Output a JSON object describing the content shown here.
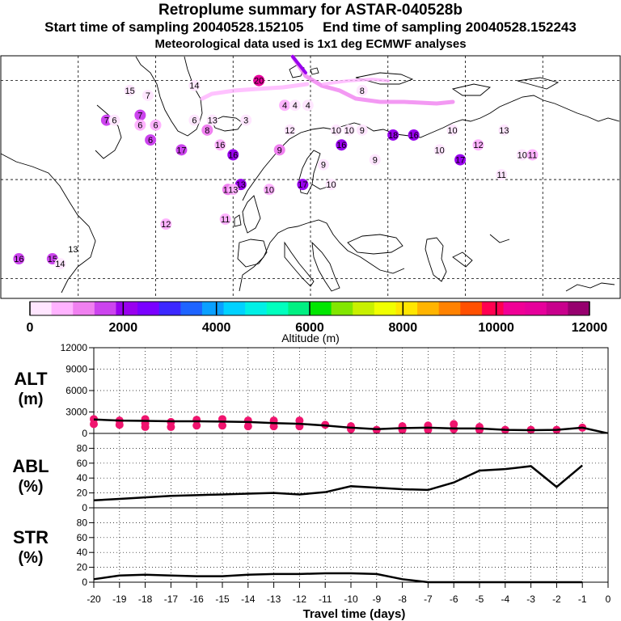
{
  "header": {
    "title": "Retroplume summary for ASTAR-040528b",
    "start_label": "Start time of sampling 20040528.152105",
    "end_label": "End time of sampling 20040528.152243",
    "met_label": "Meteorological data used is 1x1 deg ECMWF analyses"
  },
  "colorbar": {
    "title": "Altitude (m)",
    "tick_labels": [
      "0",
      "2000",
      "4000",
      "6000",
      "8000",
      "10000",
      "12000"
    ],
    "colors": [
      "#ffe6ff",
      "#ffb3ff",
      "#f080f0",
      "#cc44ee",
      "#9900ee",
      "#7a00ff",
      "#3c28ff",
      "#1e64ff",
      "#0aa0ff",
      "#00d2ff",
      "#00f0e6",
      "#00ffbe",
      "#00f082",
      "#00e600",
      "#82e600",
      "#c8f000",
      "#f0ff00",
      "#ffe600",
      "#ffb400",
      "#ff8200",
      "#ff5000",
      "#ff0050",
      "#f00096",
      "#e6009b",
      "#c8008c",
      "#96006e"
    ]
  },
  "map": {
    "labels": [
      {
        "t": "15",
        "lon": -40,
        "lat": 78,
        "c": "#ffe6ff"
      },
      {
        "t": "7",
        "lon": -33,
        "lat": 77,
        "c": "#ffe6ff"
      },
      {
        "t": "14",
        "lon": -15,
        "lat": 79,
        "c": "#ffe6ff"
      },
      {
        "t": "20",
        "lon": 10,
        "lat": 80,
        "c": "#e6009b"
      },
      {
        "t": "8",
        "lon": 50,
        "lat": 78,
        "c": "#ffe6ff"
      },
      {
        "t": "7",
        "lon": -36,
        "lat": 73,
        "c": "#cc44ee"
      },
      {
        "t": "6",
        "lon": -36,
        "lat": 71,
        "c": "#ffb3ff"
      },
      {
        "t": "6",
        "lon": -30,
        "lat": 71,
        "c": "#ffb3ff"
      },
      {
        "t": "6",
        "lon": -32,
        "lat": 68,
        "c": "#cc44ee"
      },
      {
        "t": "7",
        "lon": -49,
        "lat": 72,
        "c": "#cc44ee"
      },
      {
        "t": "6",
        "lon": -46,
        "lat": 72,
        "c": "#ffe6ff"
      },
      {
        "t": "6",
        "lon": -15,
        "lat": 72,
        "c": "#ffe6ff"
      },
      {
        "t": "8",
        "lon": -10,
        "lat": 70,
        "c": "#f080f0"
      },
      {
        "t": "16",
        "lon": -5,
        "lat": 67,
        "c": "#ffb3ff"
      },
      {
        "t": "17",
        "lon": -20,
        "lat": 66,
        "c": "#cc44ee"
      },
      {
        "t": "16",
        "lon": 0,
        "lat": 65,
        "c": "#9900ee"
      },
      {
        "t": "9",
        "lon": 18,
        "lat": 66,
        "c": "#f080f0"
      },
      {
        "t": "13",
        "lon": -8,
        "lat": 72,
        "c": "#ffe6ff"
      },
      {
        "t": "3",
        "lon": 5,
        "lat": 72,
        "c": "#ffe6ff"
      },
      {
        "t": "4",
        "lon": 20,
        "lat": 75,
        "c": "#ffb3ff"
      },
      {
        "t": "4",
        "lon": 24,
        "lat": 75,
        "c": "#ffe6ff"
      },
      {
        "t": "4",
        "lon": 29,
        "lat": 75,
        "c": "#ffe6ff"
      },
      {
        "t": "12",
        "lon": 22,
        "lat": 70,
        "c": "#ffe6ff"
      },
      {
        "t": "10",
        "lon": 40,
        "lat": 70,
        "c": "#ffe6ff"
      },
      {
        "t": "10",
        "lon": 45,
        "lat": 70,
        "c": "#ffe6ff"
      },
      {
        "t": "9",
        "lon": 50,
        "lat": 70,
        "c": "#ffe6ff"
      },
      {
        "t": "16",
        "lon": 42,
        "lat": 67,
        "c": "#9900ee"
      },
      {
        "t": "16",
        "lon": 70,
        "lat": 69,
        "c": "#9900ee"
      },
      {
        "t": "18",
        "lon": 62,
        "lat": 69,
        "c": "#9900ee"
      },
      {
        "t": "10",
        "lon": 85,
        "lat": 70,
        "c": "#ffe6ff"
      },
      {
        "t": "13",
        "lon": 105,
        "lat": 70,
        "c": "#ffe6ff"
      },
      {
        "t": "10",
        "lon": 80,
        "lat": 66,
        "c": "#ffe6ff"
      },
      {
        "t": "12",
        "lon": 95,
        "lat": 67,
        "c": "#ffb3ff"
      },
      {
        "t": "17",
        "lon": 88,
        "lat": 64,
        "c": "#9900ee"
      },
      {
        "t": "10",
        "lon": 112,
        "lat": 65,
        "c": "#ffe6ff"
      },
      {
        "t": "11",
        "lon": 116,
        "lat": 65,
        "c": "#ffb3ff"
      },
      {
        "t": "9",
        "lon": 55,
        "lat": 64,
        "c": "#ffe6ff"
      },
      {
        "t": "9",
        "lon": 35,
        "lat": 63,
        "c": "#ffe6ff"
      },
      {
        "t": "11",
        "lon": 104,
        "lat": 61,
        "c": "#ffe6ff"
      },
      {
        "t": "10",
        "lon": 38,
        "lat": 59,
        "c": "#ffe6ff"
      },
      {
        "t": "17",
        "lon": 27,
        "lat": 59,
        "c": "#9900ee"
      },
      {
        "t": "10",
        "lon": 14,
        "lat": 58,
        "c": "#ffb3ff"
      },
      {
        "t": "13",
        "lon": 3,
        "lat": 59,
        "c": "#9900ee"
      },
      {
        "t": "14",
        "lon": -2,
        "lat": 58,
        "c": "#f080f0"
      },
      {
        "t": "13",
        "lon": 0,
        "lat": 58,
        "c": "#ffb3ff"
      },
      {
        "t": "11",
        "lon": -3,
        "lat": 52,
        "c": "#ffb3ff"
      },
      {
        "t": "12",
        "lon": -26,
        "lat": 51,
        "c": "#ffb3ff"
      },
      {
        "t": "16",
        "lon": -83,
        "lat": 44,
        "c": "#cc44ee"
      },
      {
        "t": "15",
        "lon": -70,
        "lat": 44,
        "c": "#cc44ee"
      },
      {
        "t": "14",
        "lon": -67,
        "lat": 43,
        "c": "#ffe6ff"
      },
      {
        "t": "13",
        "lon": -62,
        "lat": 46,
        "c": "#ffffff"
      }
    ]
  },
  "chart_data": [
    {
      "type": "line",
      "title": "ALT (m)",
      "ylabel": "ALT (m)",
      "ylim": [
        0,
        12000
      ],
      "yticks": [
        0,
        3000,
        6000,
        9000,
        12000
      ],
      "x": [
        -20,
        -19,
        -18,
        -17,
        -16,
        -15,
        -14,
        -13,
        -12,
        -11,
        -10,
        -9,
        -8,
        -7,
        -6,
        -5,
        -4,
        -3,
        -2,
        -1,
        0
      ],
      "values": [
        1950,
        1800,
        1750,
        1700,
        1700,
        1650,
        1600,
        1450,
        1350,
        1100,
        800,
        600,
        750,
        800,
        700,
        700,
        500,
        450,
        500,
        800,
        0
      ],
      "scatter_x": [
        -20,
        -20,
        -19,
        -19,
        -18,
        -18,
        -18,
        -17,
        -17,
        -16,
        -16,
        -15,
        -15,
        -14,
        -14,
        -13,
        -13,
        -12,
        -12,
        -11,
        -10,
        -10,
        -9,
        -8,
        -8,
        -7,
        -7,
        -6,
        -6,
        -5,
        -5,
        -4,
        -3,
        -2,
        -1
      ],
      "scatter_y": [
        2000,
        1300,
        1800,
        1200,
        2000,
        1400,
        900,
        1600,
        900,
        1900,
        1100,
        2000,
        1100,
        1800,
        1000,
        1800,
        1000,
        1800,
        1000,
        1200,
        1000,
        600,
        500,
        1000,
        500,
        1100,
        500,
        1300,
        600,
        900,
        500,
        500,
        500,
        500,
        800
      ]
    },
    {
      "type": "line",
      "title": "ABL (%)",
      "ylabel": "ABL (%)",
      "ylim": [
        0,
        100
      ],
      "yticks": [
        0,
        20,
        40,
        60,
        80
      ],
      "x": [
        -20,
        -19,
        -18,
        -17,
        -16,
        -15,
        -14,
        -13,
        -12,
        -11,
        -10,
        -9,
        -8,
        -7,
        -6,
        -5,
        -4,
        -3,
        -2,
        -1
      ],
      "values": [
        10,
        12,
        14,
        16,
        17,
        18,
        19,
        20,
        18,
        21,
        29,
        27,
        25,
        24,
        34,
        50,
        52,
        56,
        28,
        57
      ]
    },
    {
      "type": "line",
      "title": "STR (%)",
      "ylabel": "STR (%)",
      "ylim": [
        0,
        100
      ],
      "yticks": [
        0,
        20,
        40,
        60,
        80
      ],
      "x": [
        -20,
        -19,
        -18,
        -17,
        -16,
        -15,
        -14,
        -13,
        -12,
        -11,
        -10,
        -9,
        -8,
        -7,
        -6,
        -5,
        -4,
        -3,
        -2,
        -1
      ],
      "values": [
        4,
        9,
        10,
        9,
        8,
        8,
        10,
        11,
        11,
        12,
        12,
        11,
        4,
        0,
        0,
        0,
        0,
        0,
        0,
        0
      ]
    }
  ],
  "axis": {
    "xlabel": "Travel time (days)",
    "xticks": [
      "-20",
      "-19",
      "-18",
      "-17",
      "-16",
      "-15",
      "-14",
      "-13",
      "-12",
      "-11",
      "-10",
      "-9",
      "-8",
      "-7",
      "-6",
      "-5",
      "-4",
      "-3",
      "-2",
      "-1",
      "0"
    ]
  },
  "panels": {
    "alt_line1": "ALT",
    "alt_line2": "(m)",
    "abl_line1": "ABL",
    "abl_line2": "(%)",
    "str_line1": "STR",
    "str_line2": "(%)"
  }
}
